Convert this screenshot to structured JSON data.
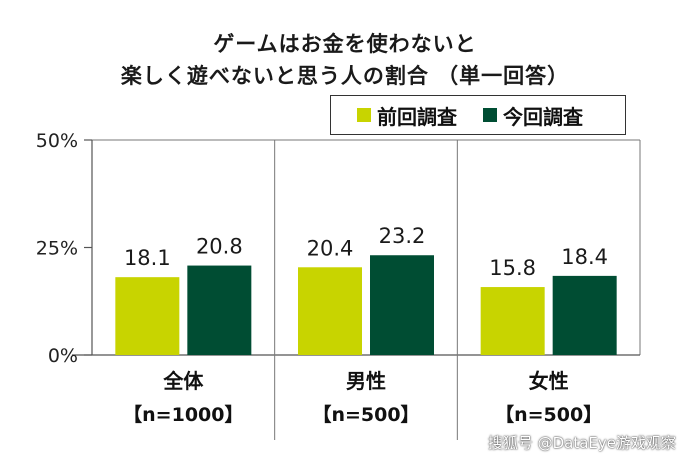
{
  "chart_data": {
    "type": "bar",
    "title_line1": "ゲームはお金を使わないと",
    "title_line2": "楽しく遊べないと思う人の割合 （単一回答）",
    "categories": [
      "全体",
      "男性",
      "女性"
    ],
    "category_sublabels": [
      "【n=1000】",
      "【n=500】",
      "【n=500】"
    ],
    "series": [
      {
        "name": "前回調査",
        "color": "#c8d400",
        "values": [
          18.1,
          20.4,
          15.8
        ]
      },
      {
        "name": "今回調査",
        "color": "#004d33",
        "values": [
          20.8,
          23.2,
          18.4
        ]
      }
    ],
    "ylim": [
      0,
      50
    ],
    "yticks": [
      0,
      25,
      50
    ],
    "ytick_labels": [
      "0%",
      "25%",
      "50%"
    ],
    "grid": false,
    "legend_placement": "top-right"
  },
  "watermark": "搜狐号 @DataEye游戏观察"
}
